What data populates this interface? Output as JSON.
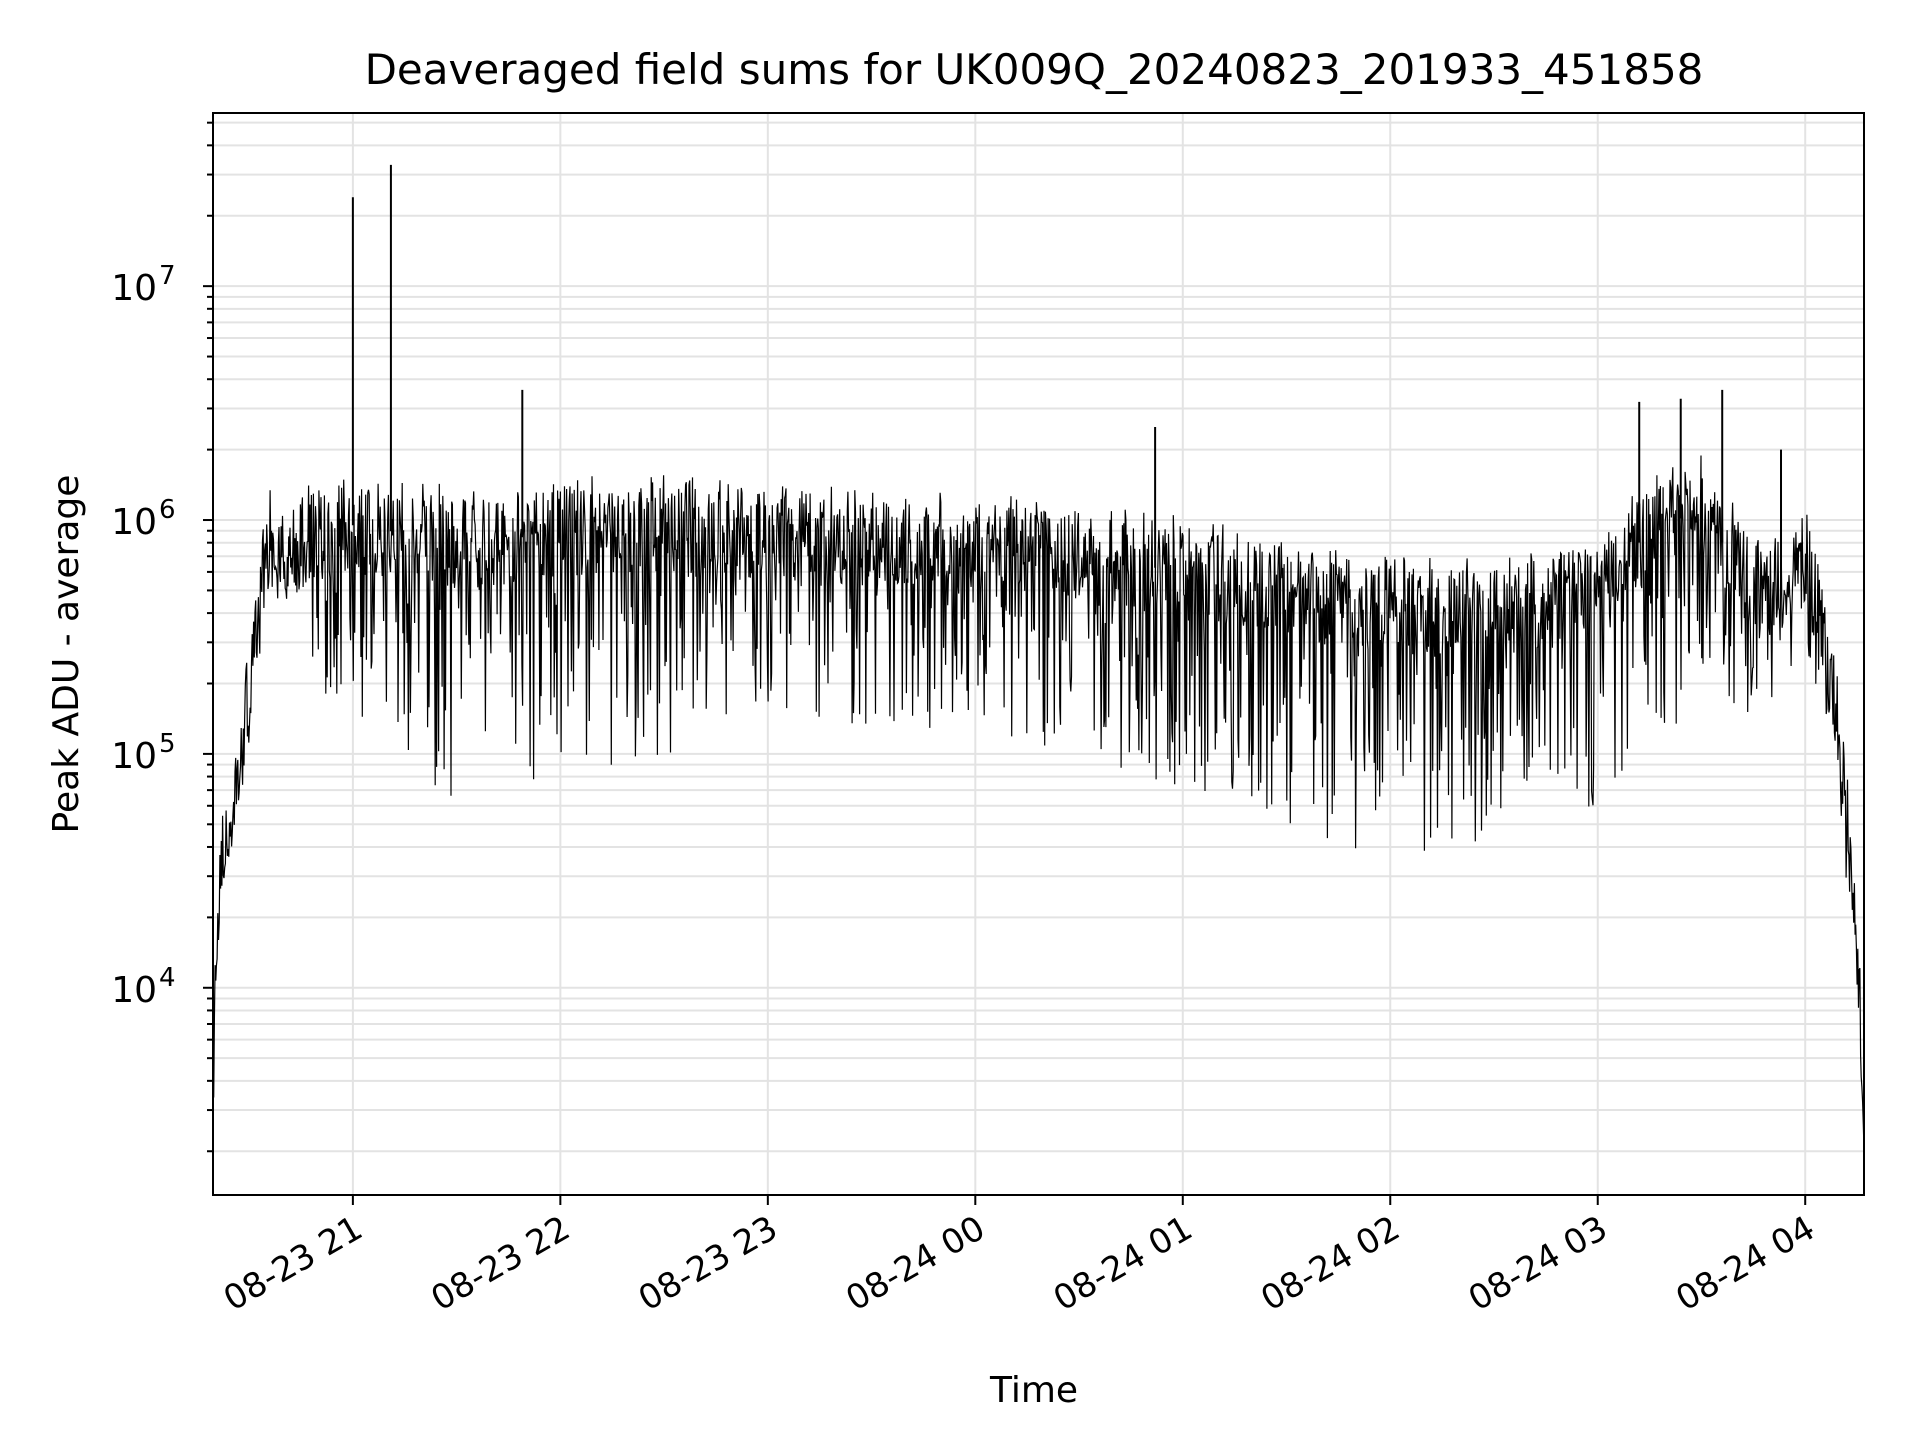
{
  "chart_data": {
    "type": "line",
    "title": "Deaveraged field sums for UK009Q_20240823_201933_451858",
    "xlabel": "Time",
    "ylabel": "Peak ADU - average",
    "x_axis": {
      "kind": "time",
      "range": [
        "2024-08-23 20:19:33",
        "2024-08-24 04:17:00"
      ],
      "tick_times": [
        "2024-08-23 21:00",
        "2024-08-23 22:00",
        "2024-08-23 23:00",
        "2024-08-24 00:00",
        "2024-08-24 01:00",
        "2024-08-24 02:00",
        "2024-08-24 03:00",
        "2024-08-24 04:00"
      ],
      "tick_labels": [
        "08-23 21",
        "08-23 22",
        "08-23 23",
        "08-24 00",
        "08-24 01",
        "08-24 02",
        "08-24 03",
        "08-24 04"
      ]
    },
    "y_axis": {
      "scale": "log",
      "range": [
        1300,
        55000000
      ],
      "ticks": [
        10000,
        100000,
        1000000,
        10000000
      ],
      "tick_mantissa": "10",
      "tick_exponents": [
        "4",
        "5",
        "6",
        "7"
      ]
    },
    "grid": true,
    "line_color": "#000000",
    "series": [
      {
        "x": [
          "2024-08-23 20:19:33",
          "2024-08-23 20:20:00",
          "2024-08-23 20:21:00",
          "2024-08-23 20:22:00",
          "2024-08-23 20:23:00",
          "2024-08-23 20:25:00",
          "2024-08-23 20:27:00",
          "2024-08-23 20:30:00",
          "2024-08-23 20:33:00",
          "2024-08-23 20:35:00",
          "2024-08-23 20:37:00",
          "2024-08-23 20:40:00",
          "2024-08-23 20:45:00",
          "2024-08-23 20:50:00",
          "2024-08-23 20:55:00",
          "2024-08-23 21:00:00",
          "2024-08-23 21:10:00",
          "2024-08-23 21:20:00",
          "2024-08-23 21:30:00",
          "2024-08-23 21:40:00",
          "2024-08-23 22:00:00",
          "2024-08-23 22:30:00",
          "2024-08-23 23:00:00",
          "2024-08-23 23:30:00",
          "2024-08-24 00:00:00",
          "2024-08-24 00:30:00",
          "2024-08-24 01:00:00",
          "2024-08-24 01:30:00",
          "2024-08-24 02:00:00",
          "2024-08-24 02:30:00",
          "2024-08-24 03:00:00",
          "2024-08-24 03:15:00",
          "2024-08-24 03:30:00",
          "2024-08-24 03:45:00",
          "2024-08-24 03:55:00",
          "2024-08-24 04:00:00",
          "2024-08-24 04:05:00",
          "2024-08-24 04:10:00",
          "2024-08-24 04:14:00",
          "2024-08-24 04:16:00",
          "2024-08-24 04:17:00"
        ],
        "y": [
          2500,
          9000,
          18000,
          30000,
          40000,
          55000,
          80000,
          180000,
          400000,
          700000,
          850000,
          700000,
          800000,
          850000,
          900000,
          950000,
          900000,
          850000,
          800000,
          800000,
          900000,
          900000,
          850000,
          800000,
          750000,
          700000,
          600000,
          500000,
          400000,
          400000,
          500000,
          900000,
          1100000,
          500000,
          500000,
          700000,
          350000,
          120000,
          25000,
          8000,
          2200
        ],
        "lower_envelope_y": [
          2500,
          8000,
          15000,
          22000,
          28000,
          40000,
          60000,
          120000,
          250000,
          400000,
          500000,
          400000,
          300000,
          200000,
          150000,
          150000,
          120000,
          80000,
          60000,
          60000,
          80000,
          100000,
          120000,
          130000,
          110000,
          100000,
          70000,
          50000,
          35000,
          40000,
          60000,
          100000,
          150000,
          150000,
          200000,
          300000,
          150000,
          60000,
          12000,
          5000,
          2200
        ],
        "spikes": [
          {
            "x": "2024-08-23 21:00:00",
            "y": 24000000
          },
          {
            "x": "2024-08-23 21:11:00",
            "y": 33000000
          },
          {
            "x": "2024-08-23 21:49:00",
            "y": 3600000
          },
          {
            "x": "2024-08-24 00:52:00",
            "y": 2500000
          },
          {
            "x": "2024-08-24 03:12:00",
            "y": 3200000
          },
          {
            "x": "2024-08-24 03:24:00",
            "y": 3300000
          },
          {
            "x": "2024-08-24 03:36:00",
            "y": 3600000
          },
          {
            "x": "2024-08-24 03:53:00",
            "y": 2000000
          }
        ]
      }
    ]
  }
}
